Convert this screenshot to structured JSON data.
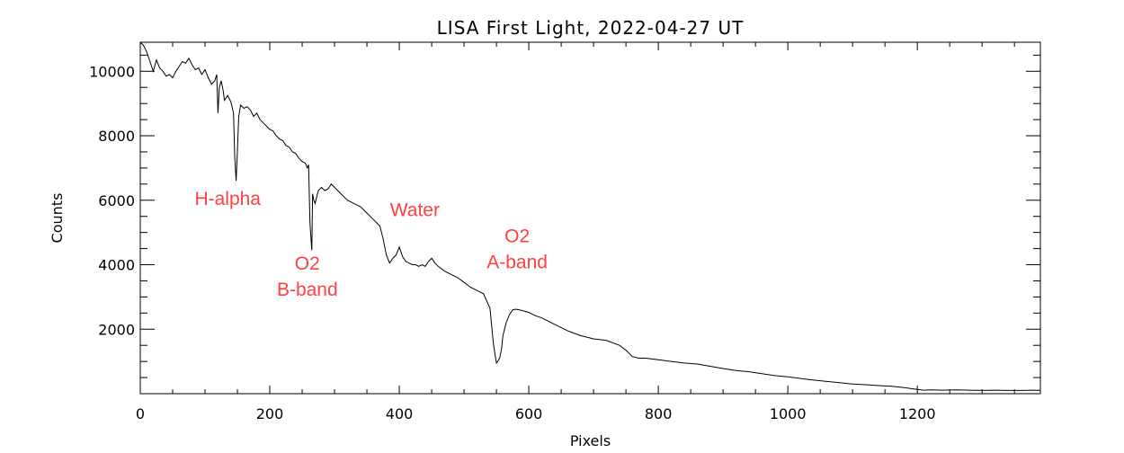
{
  "chart_data": {
    "type": "line",
    "title": "LISA First Light, 2022-04-27 UT",
    "xlabel": "Pixels",
    "ylabel": "Counts",
    "xlim": [
      0,
      1390
    ],
    "ylim": [
      0,
      10900
    ],
    "x_ticks": [
      0,
      200,
      400,
      600,
      800,
      1000,
      1200
    ],
    "y_ticks": [
      2000,
      4000,
      6000,
      8000,
      10000
    ],
    "x_tick_labels": [
      "0",
      "200",
      "400",
      "600",
      "800",
      "1000",
      "1200"
    ],
    "y_tick_labels": [
      "2000",
      "4000",
      "6000",
      "8000",
      "10000"
    ],
    "grid": false,
    "line_color": "#000000",
    "annotation_color": "#ff4040",
    "series": [
      {
        "x": [
          0,
          5,
          10,
          15,
          20,
          25,
          30,
          35,
          40,
          45,
          50,
          55,
          60,
          65,
          70,
          75,
          80,
          85,
          90,
          95,
          100,
          105,
          110,
          115,
          118,
          120,
          122,
          125,
          128,
          130,
          135,
          140,
          144,
          146,
          148,
          150,
          152,
          155,
          160,
          165,
          170,
          175,
          180,
          185,
          190,
          195,
          200,
          205,
          210,
          215,
          220,
          225,
          230,
          235,
          240,
          245,
          250,
          255,
          258,
          260,
          262,
          264,
          265,
          266,
          268,
          270,
          275,
          280,
          285,
          290,
          295,
          300,
          305,
          310,
          315,
          320,
          325,
          330,
          335,
          340,
          345,
          350,
          355,
          360,
          365,
          370,
          375,
          380,
          385,
          390,
          395,
          400,
          405,
          410,
          415,
          420,
          425,
          430,
          435,
          440,
          445,
          450,
          455,
          460,
          470,
          480,
          490,
          500,
          510,
          520,
          530,
          540,
          545,
          548,
          550,
          552,
          555,
          558,
          560,
          565,
          570,
          575,
          580,
          585,
          590,
          600,
          610,
          620,
          630,
          640,
          660,
          680,
          700,
          720,
          740,
          750,
          760,
          770,
          780,
          800,
          820,
          840,
          860,
          880,
          900,
          920,
          940,
          960,
          980,
          1000,
          1020,
          1040,
          1060,
          1080,
          1100,
          1120,
          1140,
          1160,
          1180,
          1200,
          1210,
          1220,
          1240,
          1260,
          1280,
          1300,
          1320,
          1340,
          1360,
          1380,
          1390
        ],
        "y": [
          10900,
          10800,
          10600,
          10300,
          10000,
          10350,
          10100,
          10000,
          9850,
          9900,
          9800,
          10000,
          10150,
          10300,
          10250,
          10400,
          10200,
          10050,
          10100,
          9900,
          10050,
          9800,
          9600,
          9700,
          9900,
          8700,
          9500,
          9700,
          9400,
          9100,
          9250,
          9050,
          8700,
          7300,
          6600,
          7500,
          8600,
          8950,
          8850,
          8900,
          8800,
          8600,
          8700,
          8500,
          8400,
          8300,
          8200,
          8150,
          8000,
          7900,
          7850,
          7700,
          7650,
          7500,
          7450,
          7300,
          7200,
          7150,
          7000,
          7100,
          5300,
          4700,
          4450,
          6200,
          6000,
          5900,
          6300,
          6400,
          6300,
          6350,
          6500,
          6400,
          6300,
          6200,
          6100,
          6000,
          5950,
          5900,
          5850,
          5800,
          5700,
          5600,
          5500,
          5400,
          5300,
          5200,
          4800,
          4300,
          4050,
          4200,
          4300,
          4550,
          4250,
          4100,
          4050,
          4000,
          4000,
          3950,
          4000,
          3950,
          4100,
          4200,
          4050,
          3950,
          3800,
          3700,
          3600,
          3450,
          3300,
          3200,
          3100,
          2650,
          1600,
          1200,
          950,
          1000,
          1100,
          1400,
          1800,
          2200,
          2450,
          2600,
          2620,
          2600,
          2580,
          2520,
          2420,
          2350,
          2250,
          2150,
          1950,
          1800,
          1700,
          1650,
          1500,
          1350,
          1150,
          1100,
          1100,
          1050,
          1000,
          950,
          920,
          850,
          780,
          720,
          680,
          620,
          560,
          520,
          470,
          420,
          380,
          340,
          300,
          280,
          250,
          230,
          190,
          130,
          110,
          120,
          110,
          120,
          110,
          100,
          110,
          100,
          100,
          110,
          100
        ]
      }
    ],
    "annotations": [
      {
        "lines": [
          "H-alpha"
        ],
        "x": 135,
        "y": 5850
      },
      {
        "lines": [
          "Water"
        ],
        "x": 424,
        "y": 5500
      },
      {
        "lines": [
          "O2",
          "B-band"
        ],
        "x": 258,
        "y": 3850
      },
      {
        "lines": [
          "O2",
          "A-band"
        ],
        "x": 582,
        "y": 4700
      }
    ]
  }
}
